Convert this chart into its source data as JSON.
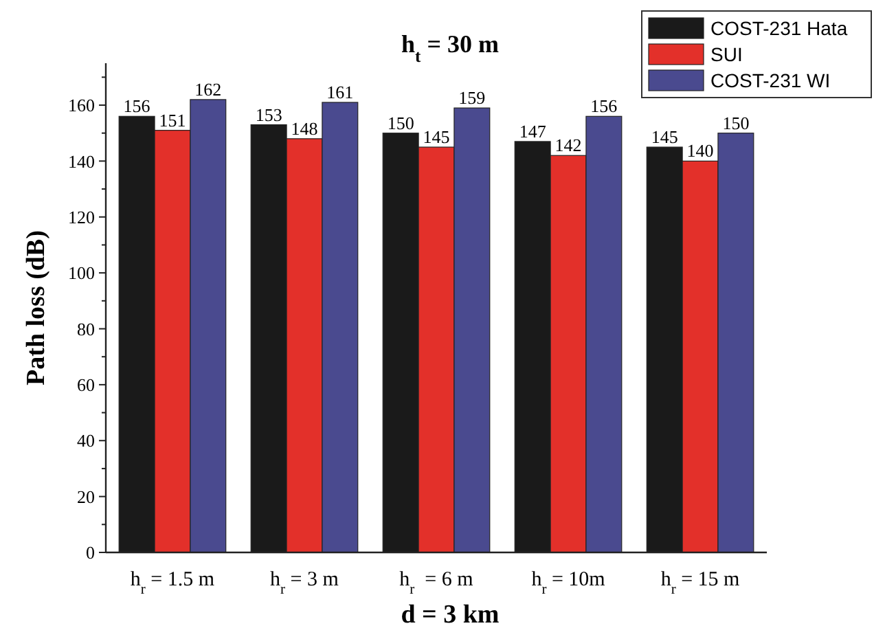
{
  "chart_data": {
    "type": "bar",
    "title": "h$_{t}$ = 30 m",
    "xlabel": "d = 3 km",
    "ylabel": "Path loss (dB)",
    "categories": [
      "h$_{r}$ = 1.5 m",
      "h$_{r}$ = 3 m",
      "h$_{r}$  = 6 m",
      "h$_{r}$ = 10m",
      "h$_{r}$ = 15 m"
    ],
    "series": [
      {
        "name": "COST-231 Hata",
        "color": "#1a1a1a",
        "values": [
          156,
          153,
          150,
          147,
          145
        ]
      },
      {
        "name": "SUI",
        "color": "#e3302a",
        "values": [
          151,
          148,
          145,
          142,
          140
        ]
      },
      {
        "name": "COST-231 WI",
        "color": "#4a4a8f",
        "values": [
          162,
          161,
          159,
          156,
          150
        ]
      }
    ],
    "ylim": [
      0,
      175
    ],
    "yticks": [
      0,
      {
        "value": 10,
        "label": null
      },
      20,
      {
        "value": 30,
        "label": null
      },
      40,
      {
        "value": 50,
        "label": null
      },
      60,
      {
        "value": 70,
        "label": null
      },
      80,
      {
        "value": 90,
        "label": null
      },
      100,
      {
        "value": 110,
        "label": null
      },
      120,
      {
        "value": 130,
        "label": null
      },
      140,
      {
        "value": 150,
        "label": null
      },
      160,
      {
        "value": 170,
        "label": null
      }
    ],
    "data_labels": true,
    "grid": false,
    "legend": "top right"
  }
}
